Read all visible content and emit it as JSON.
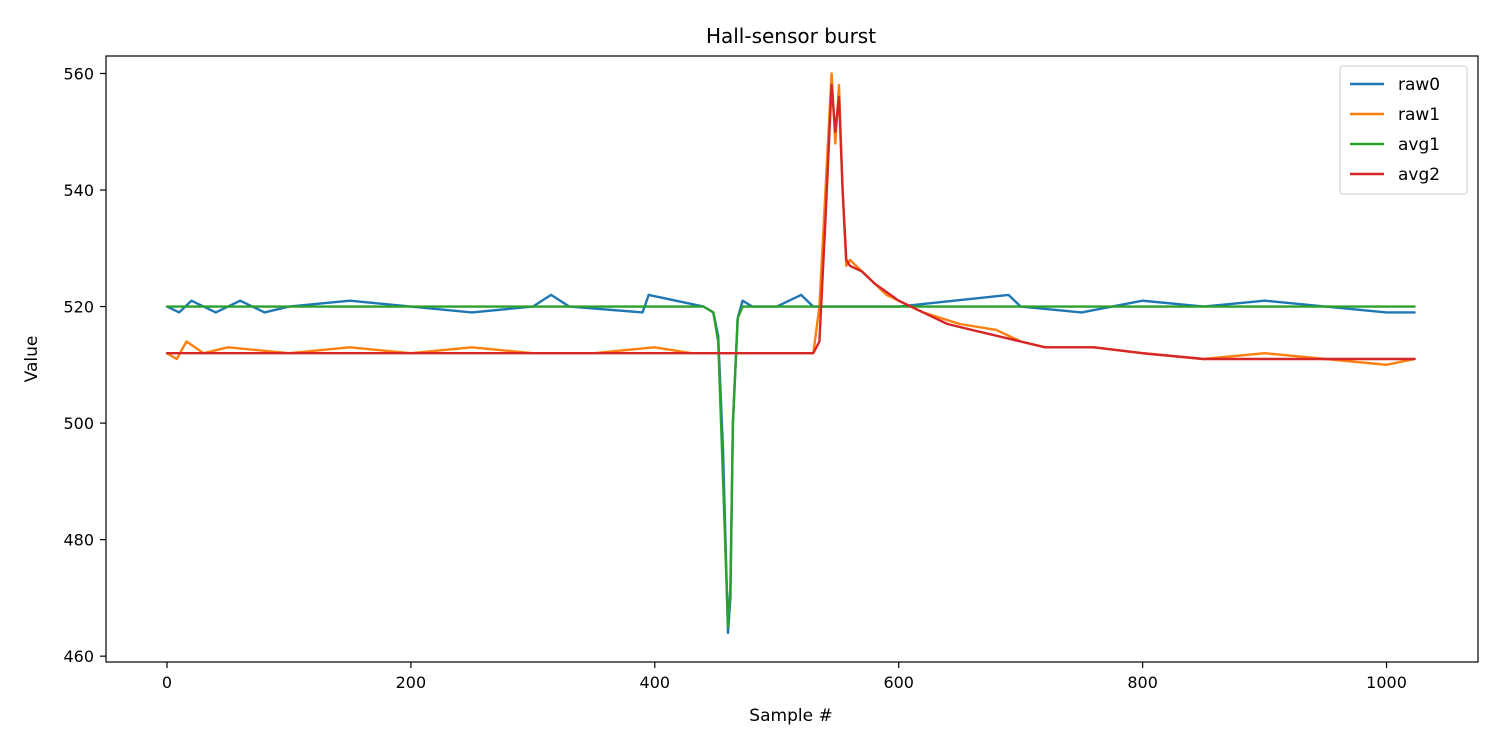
{
  "chart_data": {
    "type": "line",
    "title": "Hall-sensor burst",
    "xlabel": "Sample #",
    "ylabel": "Value",
    "xlim": [
      -50,
      1075
    ],
    "ylim": [
      459,
      563
    ],
    "xticks": [
      0,
      200,
      400,
      600,
      800,
      1000
    ],
    "yticks": [
      460,
      480,
      500,
      520,
      540,
      560
    ],
    "grid": false,
    "legend_position": "top-right",
    "series": [
      {
        "name": "raw0",
        "color": "#1f77b4",
        "x": [
          0,
          10,
          20,
          40,
          60,
          80,
          100,
          150,
          200,
          250,
          300,
          315,
          330,
          390,
          395,
          440,
          448,
          452,
          456,
          460,
          462,
          464,
          468,
          472,
          480,
          500,
          520,
          530,
          560,
          600,
          690,
          700,
          750,
          800,
          850,
          900,
          950,
          1000,
          1023
        ],
        "y": [
          520,
          519,
          521,
          519,
          521,
          519,
          520,
          521,
          520,
          519,
          520,
          522,
          520,
          519,
          522,
          520,
          519,
          515,
          495,
          464,
          470,
          500,
          518,
          521,
          520,
          520,
          522,
          520,
          520,
          520,
          522,
          520,
          519,
          521,
          520,
          521,
          520,
          519,
          519
        ]
      },
      {
        "name": "raw1",
        "color": "#ff7f0e",
        "x": [
          0,
          8,
          16,
          30,
          50,
          100,
          150,
          200,
          250,
          300,
          350,
          400,
          430,
          500,
          530,
          535,
          540,
          545,
          548,
          551,
          554,
          557,
          560,
          565,
          575,
          590,
          600,
          620,
          650,
          680,
          700,
          720,
          760,
          800,
          850,
          900,
          950,
          1000,
          1023
        ],
        "y": [
          512,
          511,
          514,
          512,
          513,
          512,
          513,
          512,
          513,
          512,
          512,
          513,
          512,
          512,
          512,
          520,
          540,
          560,
          548,
          558,
          540,
          527,
          528,
          527,
          525,
          522,
          521,
          519,
          517,
          516,
          514,
          513,
          513,
          512,
          511,
          512,
          511,
          510,
          511
        ]
      },
      {
        "name": "avg1",
        "color": "#2ca02c",
        "x": [
          0,
          100,
          200,
          300,
          400,
          440,
          448,
          452,
          456,
          460,
          462,
          464,
          468,
          472,
          480,
          600,
          700,
          800,
          900,
          1023
        ],
        "y": [
          520,
          520,
          520,
          520,
          520,
          520,
          519,
          514,
          490,
          465,
          472,
          500,
          518,
          520,
          520,
          520,
          520,
          520,
          520,
          520
        ]
      },
      {
        "name": "avg2",
        "color": "#d62728",
        "x": [
          0,
          100,
          200,
          300,
          400,
          450,
          500,
          530,
          535,
          540,
          545,
          548,
          551,
          554,
          557,
          560,
          570,
          580,
          600,
          620,
          640,
          660,
          680,
          700,
          720,
          760,
          800,
          850,
          900,
          950,
          1000,
          1023
        ],
        "y": [
          512,
          512,
          512,
          512,
          512,
          512,
          512,
          512,
          514,
          535,
          558,
          550,
          556,
          540,
          528,
          527,
          526,
          524,
          521,
          519,
          517,
          516,
          515,
          514,
          513,
          513,
          512,
          511,
          511,
          511,
          511,
          511
        ]
      }
    ]
  }
}
